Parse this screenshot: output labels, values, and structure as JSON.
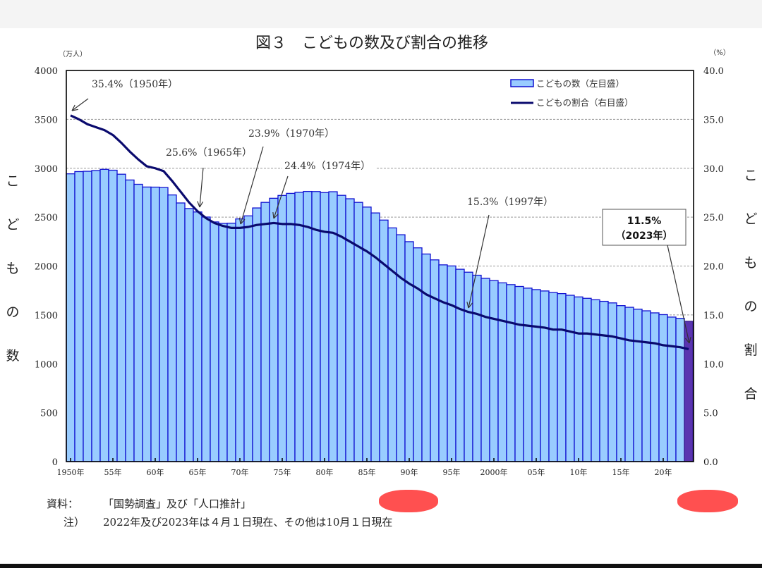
{
  "chart_data": {
    "type": "bar+line",
    "title": "図３　こどもの数及び割合の推移",
    "left_axis": {
      "unit": "（万人）",
      "label": "こどもの数",
      "ylim": [
        0,
        4000
      ],
      "ticks": [
        "0",
        "500",
        "1000",
        "1500",
        "2000",
        "2500",
        "3000",
        "3500",
        "4000"
      ]
    },
    "right_axis": {
      "unit": "（%）",
      "label": "こどもの割合",
      "ylim": [
        0,
        40
      ],
      "ticks": [
        "0.0",
        "5.0",
        "10.0",
        "15.0",
        "20.0",
        "25.0",
        "30.0",
        "35.0",
        "40.0"
      ]
    },
    "x_tick_labels": [
      "1950年",
      "55年",
      "60年",
      "65年",
      "70年",
      "75年",
      "80年",
      "85年",
      "90年",
      "95年",
      "2000年",
      "05年",
      "10年",
      "15年",
      "20年"
    ],
    "years": [
      1950,
      1951,
      1952,
      1953,
      1954,
      1955,
      1956,
      1957,
      1958,
      1959,
      1960,
      1961,
      1962,
      1963,
      1964,
      1965,
      1966,
      1967,
      1968,
      1969,
      1970,
      1971,
      1972,
      1973,
      1974,
      1975,
      1976,
      1977,
      1978,
      1979,
      1980,
      1981,
      1982,
      1983,
      1984,
      1985,
      1986,
      1987,
      1988,
      1989,
      1990,
      1991,
      1992,
      1993,
      1994,
      1995,
      1996,
      1997,
      1998,
      1999,
      2000,
      2001,
      2002,
      2003,
      2004,
      2005,
      2006,
      2007,
      2008,
      2009,
      2010,
      2011,
      2012,
      2013,
      2014,
      2015,
      2016,
      2017,
      2018,
      2019,
      2020,
      2021,
      2022,
      2023
    ],
    "grid": "dashed horizontal",
    "legend_position": "top-right",
    "series": [
      {
        "name": "こどもの数（左目盛）",
        "type": "bar",
        "axis": "left",
        "color": "#99ccff",
        "edge_color": "#1010d0",
        "highlight_last_color": "#5a34b0",
        "values": [
          2943,
          2966,
          2969,
          2977,
          2989,
          2980,
          2939,
          2880,
          2836,
          2808,
          2807,
          2803,
          2727,
          2645,
          2588,
          2553,
          2501,
          2451,
          2436,
          2438,
          2482,
          2513,
          2594,
          2651,
          2693,
          2722,
          2743,
          2754,
          2763,
          2762,
          2751,
          2760,
          2723,
          2688,
          2651,
          2603,
          2543,
          2470,
          2390,
          2320,
          2249,
          2186,
          2123,
          2063,
          2012,
          2001,
          1967,
          1937,
          1906,
          1874,
          1851,
          1828,
          1810,
          1791,
          1774,
          1759,
          1745,
          1729,
          1718,
          1701,
          1684,
          1670,
          1655,
          1639,
          1623,
          1595,
          1578,
          1559,
          1542,
          1521,
          1503,
          1478,
          1465,
          1435
        ]
      },
      {
        "name": "こどもの割合（右目盛）",
        "type": "line",
        "axis": "right",
        "color": "#0a0a6e",
        "values": [
          35.4,
          35.0,
          34.5,
          34.2,
          33.9,
          33.4,
          32.6,
          31.7,
          30.9,
          30.2,
          30.0,
          29.7,
          28.7,
          27.6,
          26.5,
          25.6,
          24.9,
          24.4,
          24.1,
          23.9,
          23.9,
          24.0,
          24.2,
          24.3,
          24.4,
          24.3,
          24.3,
          24.2,
          24.0,
          23.7,
          23.5,
          23.4,
          23.0,
          22.5,
          22.0,
          21.5,
          20.9,
          20.2,
          19.5,
          18.8,
          18.2,
          17.7,
          17.1,
          16.7,
          16.3,
          16.0,
          15.6,
          15.3,
          15.1,
          14.8,
          14.6,
          14.4,
          14.2,
          14.0,
          13.9,
          13.8,
          13.7,
          13.5,
          13.5,
          13.3,
          13.1,
          13.1,
          13.0,
          12.9,
          12.8,
          12.6,
          12.4,
          12.3,
          12.2,
          12.1,
          11.9,
          11.8,
          11.7,
          11.5
        ]
      }
    ],
    "annotations": [
      {
        "text": "35.4%（1950年）",
        "year": 1950
      },
      {
        "text": "25.6%（1965年）",
        "year": 1965
      },
      {
        "text": "23.9%（1970年）",
        "year": 1970
      },
      {
        "text": "24.4%（1974年）",
        "year": 1974
      },
      {
        "text": "15.3%（1997年）",
        "year": 1997
      },
      {
        "text": "11.5%",
        "text2": "（2023年）",
        "year": 2023,
        "boxed": true
      }
    ]
  },
  "footer": {
    "source_label": "資料：",
    "source_text": "「国勢調査」及び「人口推計」",
    "note_label": "注）",
    "note_text": "2022年及び2023年は４月１日現在、その他は10月１日現在"
  }
}
